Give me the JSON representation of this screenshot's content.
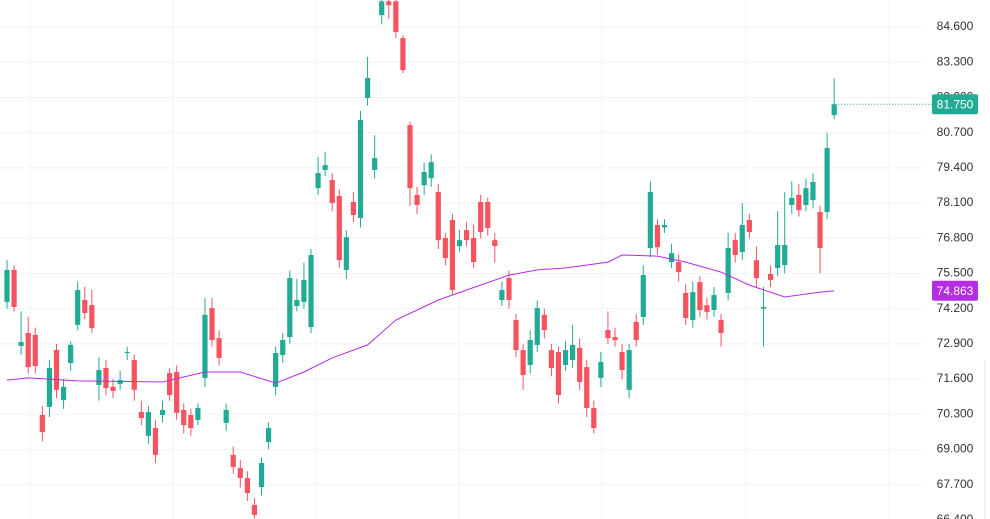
{
  "chart_data": {
    "type": "candlestick",
    "up_color": "#22ab94",
    "down_color": "#f7525f",
    "grid": true,
    "ylim": [
      66.43,
      85.6
    ],
    "yticks": [
      {
        "value": 84.6,
        "label": "84.600"
      },
      {
        "value": 83.3,
        "label": "83.300"
      },
      {
        "value": 82.0,
        "label": "82.000"
      },
      {
        "value": 80.7,
        "label": "80.700"
      },
      {
        "value": 79.4,
        "label": "79.400"
      },
      {
        "value": 78.1,
        "label": "78.100"
      },
      {
        "value": 76.8,
        "label": "76.800"
      },
      {
        "value": 75.5,
        "label": "75.500"
      },
      {
        "value": 74.2,
        "label": "74.200"
      },
      {
        "value": 72.9,
        "label": "72.900"
      },
      {
        "value": 71.6,
        "label": "71.600"
      },
      {
        "value": 70.3,
        "label": "70.300"
      },
      {
        "value": 69.0,
        "label": "69.000"
      },
      {
        "value": 67.7,
        "label": "67.700"
      },
      {
        "value": 66.4,
        "label": "66.400"
      }
    ],
    "open": [
      74.45,
      75.63,
      72.82,
      73.3,
      73.23,
      70.27,
      70.57,
      72.67,
      70.82,
      72.19,
      73.6,
      74.52,
      74.33,
      71.38,
      72.01,
      71.31,
      71.42,
      72.56,
      72.3,
      70.38,
      69.5,
      69.79,
      70.27,
      71.82,
      71.86,
      70.46,
      70.27,
      70.09,
      71.64,
      74.22,
      73.11,
      69.98,
      68.8,
      68.31,
      67.94,
      66.95,
      67.61,
      69.27,
      71.31,
      72.49,
      73.15,
      74.3,
      74.45,
      73.52,
      78.65,
      79.32,
      78.95,
      78.36,
      75.63,
      78.14,
      77.55,
      81.98,
      79.32,
      85.04,
      85.55,
      85.55,
      84.19,
      80.98,
      78.4,
      78.76,
      79.02,
      78.51,
      76.81,
      77.47,
      76.51,
      77.1,
      76.81,
      78.14,
      78.14,
      76.73,
      74.52,
      75.33,
      73.78,
      72.67,
      72.12,
      72.86,
      73.97,
      72.67,
      72.6,
      72.12,
      72.3,
      72.75,
      72.04,
      70.53,
      71.64,
      73.41,
      73.15,
      72.6,
      71.2,
      73.71,
      73.89,
      76.44,
      77.29,
      77.2,
      75.92,
      75.92,
      74.78,
      73.78,
      75.18,
      74.33,
      74.15,
      73.78,
      74.78,
      76.73,
      76.29,
      77.47,
      75.99,
      74.2,
      75.48,
      75.7,
      75.81,
      78.03,
      78.4,
      78.03,
      78.21,
      77.77,
      77.77,
      81.35
    ],
    "high": [
      76.0,
      75.8,
      74.1,
      73.9,
      73.5,
      70.6,
      72.3,
      72.9,
      71.6,
      73.0,
      75.2,
      75.0,
      74.9,
      72.4,
      72.3,
      71.6,
      71.9,
      72.8,
      72.5,
      70.8,
      70.6,
      70.1,
      70.8,
      72.0,
      72.1,
      70.7,
      70.5,
      70.7,
      74.6,
      74.6,
      73.4,
      70.7,
      69.1,
      68.6,
      68.2,
      67.2,
      68.7,
      70.0,
      72.8,
      73.3,
      75.6,
      75.3,
      75.9,
      76.4,
      79.8,
      80.0,
      79.2,
      78.6,
      77.1,
      78.5,
      81.5,
      83.5,
      80.6,
      85.6,
      85.6,
      85.6,
      84.3,
      81.1,
      78.7,
      79.6,
      79.9,
      78.8,
      77.0,
      77.7,
      77.1,
      77.4,
      77.3,
      78.4,
      78.3,
      77.0,
      75.2,
      75.6,
      74.0,
      72.9,
      73.4,
      74.5,
      74.2,
      72.9,
      72.8,
      73.0,
      73.6,
      73.1,
      72.3,
      70.8,
      72.6,
      74.1,
      73.5,
      72.9,
      72.9,
      74.0,
      75.8,
      78.9,
      77.5,
      77.5,
      76.6,
      76.2,
      75.1,
      75.2,
      75.4,
      74.6,
      75.0,
      74.0,
      77.0,
      77.0,
      78.1,
      77.7,
      76.5,
      75.0,
      75.8,
      77.8,
      78.5,
      78.9,
      78.8,
      79.0,
      79.2,
      78.0,
      80.7,
      82.7
    ],
    "low": [
      74.2,
      74.1,
      72.5,
      71.8,
      71.8,
      69.3,
      70.2,
      70.9,
      70.5,
      71.9,
      73.4,
      73.8,
      73.3,
      70.8,
      71.0,
      70.9,
      71.2,
      72.3,
      70.8,
      69.9,
      69.2,
      68.5,
      70.0,
      70.8,
      70.1,
      69.6,
      69.5,
      69.9,
      71.3,
      72.8,
      72.1,
      69.7,
      68.1,
      67.6,
      67.1,
      66.45,
      67.3,
      69.0,
      71.0,
      72.2,
      72.9,
      74.1,
      74.2,
      73.3,
      78.4,
      79.1,
      77.8,
      75.7,
      75.3,
      77.4,
      77.2,
      81.7,
      79.0,
      84.7,
      84.9,
      84.2,
      82.9,
      78.0,
      77.7,
      78.4,
      78.7,
      76.4,
      75.8,
      74.7,
      76.3,
      76.5,
      75.7,
      76.8,
      76.9,
      75.9,
      74.3,
      74.2,
      72.4,
      71.2,
      71.8,
      72.6,
      73.1,
      71.7,
      70.7,
      71.9,
      72.0,
      71.2,
      70.2,
      69.6,
      71.3,
      72.9,
      72.8,
      71.6,
      70.9,
      72.8,
      73.6,
      76.1,
      76.2,
      77.0,
      75.7,
      75.2,
      73.6,
      73.5,
      73.9,
      73.8,
      73.9,
      72.8,
      74.5,
      75.9,
      76.0,
      76.8,
      75.0,
      72.8,
      75.0,
      75.4,
      75.5,
      77.7,
      77.6,
      77.8,
      77.9,
      75.5,
      77.5,
      81.2
    ],
    "close": [
      75.63,
      74.26,
      72.97,
      72.04,
      72.08,
      69.64,
      72.01,
      71.2,
      71.31,
      72.86,
      74.89,
      74.04,
      73.48,
      71.93,
      71.27,
      71.16,
      71.56,
      72.6,
      71.2,
      70.16,
      70.38,
      68.8,
      70.46,
      71.01,
      70.35,
      69.9,
      69.79,
      70.53,
      73.97,
      73.04,
      72.38,
      70.46,
      68.35,
      67.94,
      67.39,
      66.58,
      68.5,
      69.79,
      72.56,
      73.04,
      75.33,
      74.52,
      75.26,
      76.18,
      79.21,
      79.5,
      78.1,
      75.99,
      76.84,
      77.66,
      81.17,
      82.72,
      79.76,
      85.55,
      85.41,
      84.42,
      83.01,
      78.65,
      78.03,
      79.25,
      79.61,
      76.73,
      76.07,
      74.89,
      76.73,
      76.73,
      75.92,
      77.03,
      77.18,
      76.51,
      74.89,
      74.52,
      72.67,
      71.75,
      73.04,
      74.22,
      73.41,
      72.01,
      71.01,
      72.67,
      72.86,
      71.49,
      70.53,
      69.79,
      72.23,
      73.11,
      73.04,
      71.93,
      72.67,
      73.04,
      75.44,
      78.51,
      76.47,
      77.29,
      76.25,
      75.55,
      73.85,
      74.81,
      74.15,
      74.08,
      74.7,
      73.3,
      76.44,
      76.18,
      77.29,
      77.03,
      75.33,
      74.26,
      75.26,
      76.55,
      76.55,
      78.29,
      77.84,
      78.65,
      78.88,
      76.44,
      80.13,
      81.75
    ],
    "ma": {
      "color": "#b52de0",
      "x": [
        0,
        3,
        10,
        22,
        28,
        33,
        38,
        42,
        46,
        51,
        55,
        61,
        65,
        71,
        75,
        79,
        85,
        87,
        92,
        96,
        101,
        105,
        110,
        115,
        117
      ],
      "values": [
        71.56,
        71.64,
        71.53,
        71.49,
        71.86,
        71.86,
        71.45,
        71.86,
        72.38,
        72.86,
        73.78,
        74.52,
        74.89,
        75.44,
        75.63,
        75.7,
        75.92,
        76.18,
        76.14,
        75.92,
        75.55,
        75.07,
        74.63,
        74.81,
        74.863
      ]
    },
    "last_price": {
      "value": 81.75,
      "label": "81.750"
    },
    "ma_last": {
      "value": 74.863,
      "label": "74.863"
    }
  }
}
